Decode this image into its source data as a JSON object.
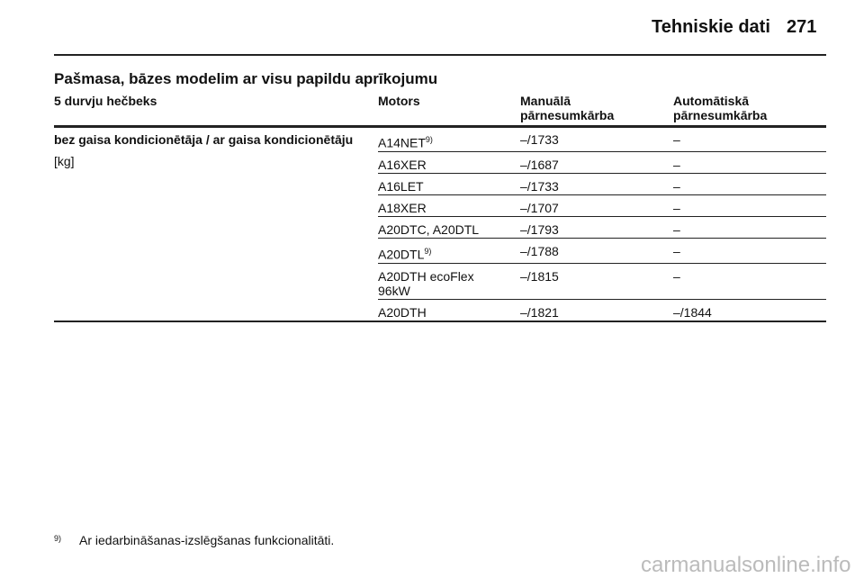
{
  "header": {
    "title": "Tehniskie dati",
    "page": "271"
  },
  "section_title": "Pašmasa, bāzes modelim ar visu papildu aprīkojumu",
  "table": {
    "columns": [
      "5 durvju hečbeks",
      "Motors",
      "Manuālā pārnesumkārba",
      "Automātiskā pārnesumkārba"
    ],
    "row_header": [
      "bez gaisa kondicionētāja / ar gaisa kondicionētāju",
      "[kg]"
    ],
    "rows": [
      {
        "motor": "A14NET",
        "note": "9)",
        "manual": "–/1733",
        "automatic": "–"
      },
      {
        "motor": "A16XER",
        "manual": "–/1687",
        "automatic": "–"
      },
      {
        "motor": "A16LET",
        "manual": "–/1733",
        "automatic": "–"
      },
      {
        "motor": "A18XER",
        "manual": "–/1707",
        "automatic": "–"
      },
      {
        "motor": "A20DTC, A20DTL",
        "manual": "–/1793",
        "automatic": "–"
      },
      {
        "motor": "A20DTL",
        "note": "9)",
        "manual": "–/1788",
        "automatic": "–"
      },
      {
        "motor": "A20DTH ecoFlex 96kW",
        "manual": "–/1815",
        "automatic": "–"
      },
      {
        "motor": "A20DTH",
        "manual": "–/1821",
        "automatic": "–/1844"
      }
    ]
  },
  "footnote": {
    "marker": "9)",
    "text": "Ar iedarbināšanas-izslēgšanas funkcionalitāti."
  },
  "watermark": "carmanualsonline.info"
}
